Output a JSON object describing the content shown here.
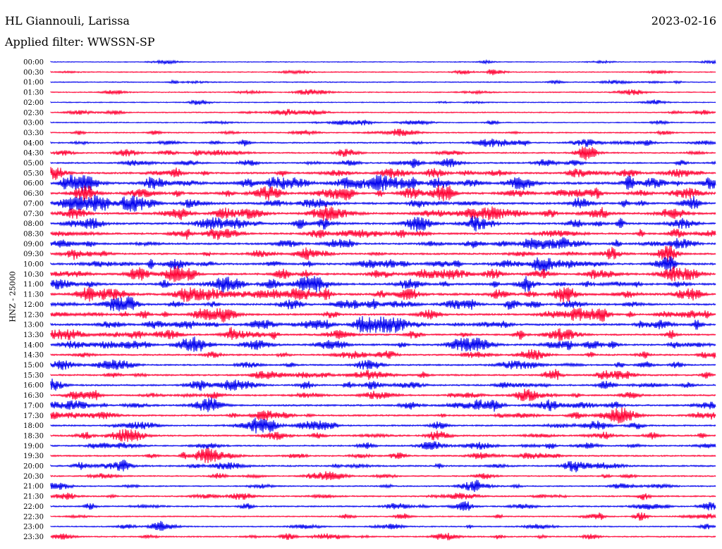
{
  "header": {
    "station": "HL Giannouli, Larissa",
    "date": "2023-02-16",
    "filter": "Applied filter: WWSSN-SP",
    "ylabel": "HNZ - 25000"
  },
  "chart_data": {
    "type": "line",
    "title": "HL Giannouli, Larissa",
    "ylabel": "HNZ - 25000",
    "series_colors": [
      "#0000ee",
      "#ff0033"
    ],
    "rows": [
      {
        "label": "00:00",
        "color": "#0000ee",
        "activity": 0.05
      },
      {
        "label": "00:30",
        "color": "#ff0033",
        "activity": 0.15
      },
      {
        "label": "01:00",
        "color": "#0000ee",
        "activity": 0.15
      },
      {
        "label": "01:30",
        "color": "#ff0033",
        "activity": 0.15
      },
      {
        "label": "02:00",
        "color": "#0000ee",
        "activity": 0.12
      },
      {
        "label": "02:30",
        "color": "#ff0033",
        "activity": 0.2
      },
      {
        "label": "03:00",
        "color": "#0000ee",
        "activity": 0.15
      },
      {
        "label": "03:30",
        "color": "#ff0033",
        "activity": 0.25
      },
      {
        "label": "04:00",
        "color": "#0000ee",
        "activity": 0.35
      },
      {
        "label": "04:30",
        "color": "#ff0033",
        "activity": 0.35
      },
      {
        "label": "05:00",
        "color": "#0000ee",
        "activity": 0.4
      },
      {
        "label": "05:30",
        "color": "#ff0033",
        "activity": 0.6
      },
      {
        "label": "06:00",
        "color": "#0000ee",
        "activity": 0.85
      },
      {
        "label": "06:30",
        "color": "#ff0033",
        "activity": 0.7
      },
      {
        "label": "07:00",
        "color": "#0000ee",
        "activity": 0.75
      },
      {
        "label": "07:30",
        "color": "#ff0033",
        "activity": 0.7
      },
      {
        "label": "08:00",
        "color": "#0000ee",
        "activity": 0.7
      },
      {
        "label": "08:30",
        "color": "#ff0033",
        "activity": 0.6
      },
      {
        "label": "09:00",
        "color": "#0000ee",
        "activity": 0.6
      },
      {
        "label": "09:30",
        "color": "#ff0033",
        "activity": 0.55
      },
      {
        "label": "10:00",
        "color": "#0000ee",
        "activity": 0.65
      },
      {
        "label": "10:30",
        "color": "#ff0033",
        "activity": 0.7
      },
      {
        "label": "11:00",
        "color": "#0000ee",
        "activity": 0.7
      },
      {
        "label": "11:30",
        "color": "#ff0033",
        "activity": 0.8
      },
      {
        "label": "12:00",
        "color": "#0000ee",
        "activity": 0.6
      },
      {
        "label": "12:30",
        "color": "#ff0033",
        "activity": 0.6
      },
      {
        "label": "13:00",
        "color": "#0000ee",
        "activity": 0.7
      },
      {
        "label": "13:30",
        "color": "#ff0033",
        "activity": 0.55
      },
      {
        "label": "14:00",
        "color": "#0000ee",
        "activity": 0.6
      },
      {
        "label": "14:30",
        "color": "#ff0033",
        "activity": 0.45
      },
      {
        "label": "15:00",
        "color": "#0000ee",
        "activity": 0.45
      },
      {
        "label": "15:30",
        "color": "#ff0033",
        "activity": 0.5
      },
      {
        "label": "16:00",
        "color": "#0000ee",
        "activity": 0.5
      },
      {
        "label": "16:30",
        "color": "#ff0033",
        "activity": 0.45
      },
      {
        "label": "17:00",
        "color": "#0000ee",
        "activity": 0.55
      },
      {
        "label": "17:30",
        "color": "#ff0033",
        "activity": 0.5
      },
      {
        "label": "18:00",
        "color": "#0000ee",
        "activity": 0.45
      },
      {
        "label": "18:30",
        "color": "#ff0033",
        "activity": 0.45
      },
      {
        "label": "19:00",
        "color": "#0000ee",
        "activity": 0.4
      },
      {
        "label": "19:30",
        "color": "#ff0033",
        "activity": 0.4
      },
      {
        "label": "20:00",
        "color": "#0000ee",
        "activity": 0.45
      },
      {
        "label": "20:30",
        "color": "#ff0033",
        "activity": 0.3
      },
      {
        "label": "21:00",
        "color": "#0000ee",
        "activity": 0.3
      },
      {
        "label": "21:30",
        "color": "#ff0033",
        "activity": 0.35
      },
      {
        "label": "22:00",
        "color": "#0000ee",
        "activity": 0.35
      },
      {
        "label": "22:30",
        "color": "#ff0033",
        "activity": 0.25
      },
      {
        "label": "23:00",
        "color": "#0000ee",
        "activity": 0.25
      },
      {
        "label": "23:30",
        "color": "#ff0033",
        "activity": 0.3
      }
    ]
  }
}
